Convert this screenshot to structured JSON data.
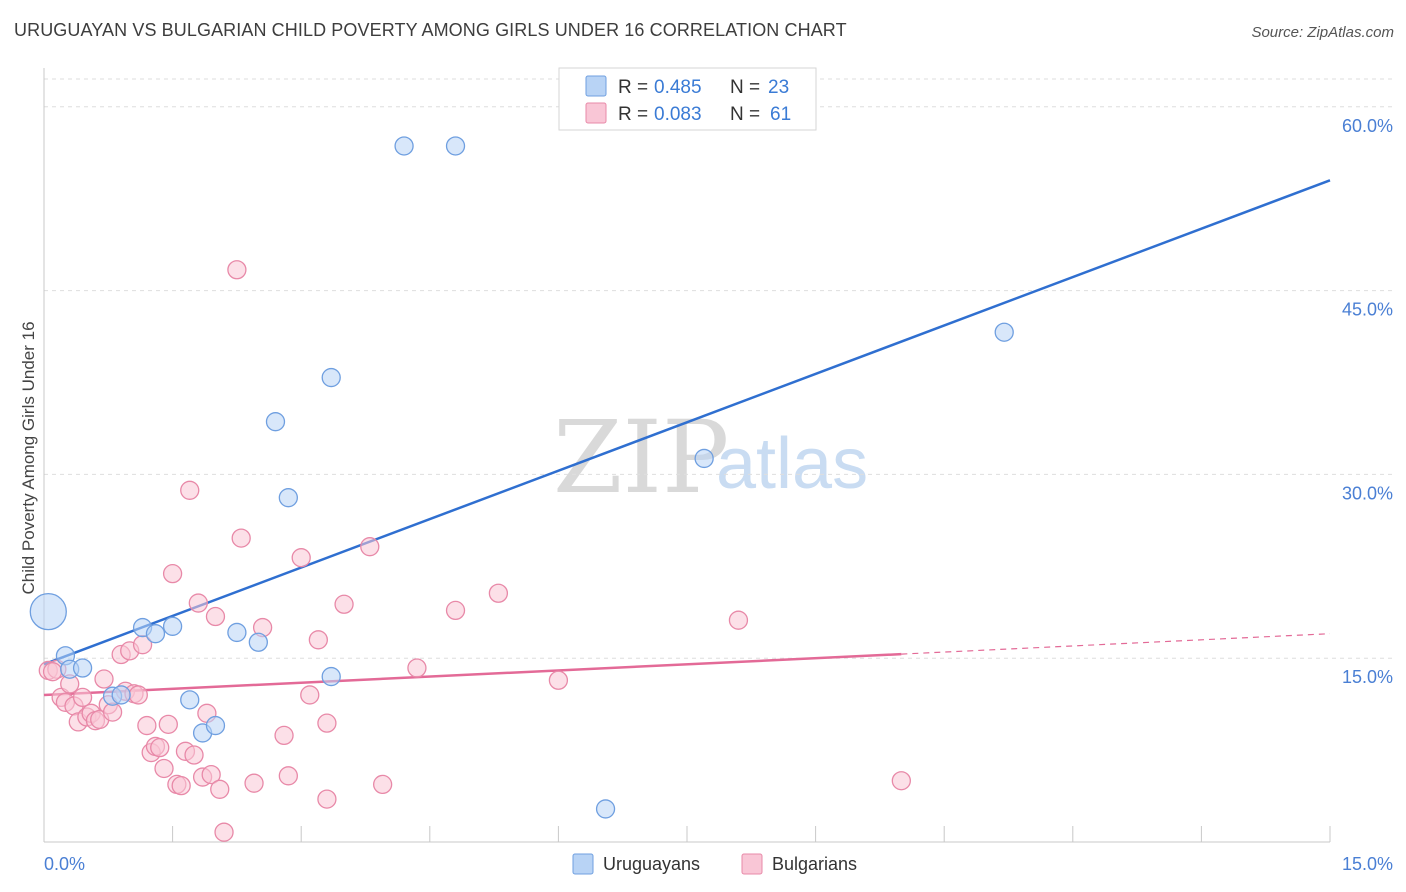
{
  "header": {
    "title": "URUGUAYAN VS BULGARIAN CHILD POVERTY AMONG GIRLS UNDER 16 CORRELATION CHART",
    "source": "Source: ZipAtlas.com"
  },
  "watermark": {
    "zip": "ZIP",
    "atlas": "atlas"
  },
  "colors": {
    "uruguayan_fill": "#b8d3f5",
    "uruguayan_stroke": "#6f9fe0",
    "uruguayan_line": "#2f6fd0",
    "bulgarian_fill": "#f9c6d6",
    "bulgarian_stroke": "#e889a8",
    "bulgarian_line": "#e36a97",
    "tick_text": "#4a7fd4",
    "grid": "#dedede"
  },
  "legend": {
    "rows": [
      {
        "r_label": "R = ",
        "r_value": "0.485",
        "n_label": "N = ",
        "n_value": "23"
      },
      {
        "r_label": "R = ",
        "r_value": "0.083",
        "n_label": "N = ",
        "n_value": "61"
      }
    ],
    "bottom": [
      "Uruguayans",
      "Bulgarians"
    ]
  },
  "chart_data": {
    "type": "scatter",
    "title": "URUGUAYAN VS BULGARIAN CHILD POVERTY AMONG GIRLS UNDER 16 CORRELATION CHART",
    "xlabel": "",
    "ylabel": "Child Poverty Among Girls Under 16",
    "xlim": [
      0,
      15
    ],
    "ylim": [
      0,
      63
    ],
    "x_tick_labels": [
      "0.0%",
      "15.0%"
    ],
    "y_ticks": [
      15,
      30,
      45,
      60
    ],
    "y_tick_labels": [
      "15.0%",
      "30.0%",
      "45.0%",
      "60.0%"
    ],
    "grid": true,
    "legend_position": "top-center",
    "series": [
      {
        "name": "Uruguayans",
        "R": 0.485,
        "N": 23,
        "trend": {
          "x": [
            0.0,
            15.0
          ],
          "y": [
            14.5,
            54.0
          ],
          "dashed_from": null
        },
        "points": [
          [
            0.05,
            18.8,
            18
          ],
          [
            0.25,
            15.2,
            9
          ],
          [
            0.3,
            14.1,
            9
          ],
          [
            0.45,
            14.2,
            9
          ],
          [
            0.8,
            11.9,
            9
          ],
          [
            1.15,
            17.5,
            9
          ],
          [
            1.3,
            17.0,
            9
          ],
          [
            1.5,
            17.6,
            9
          ],
          [
            1.7,
            11.6,
            9
          ],
          [
            1.85,
            8.9,
            9
          ],
          [
            2.0,
            9.5,
            9
          ],
          [
            2.25,
            17.1,
            9
          ],
          [
            2.5,
            16.3,
            9
          ],
          [
            2.7,
            34.3,
            9
          ],
          [
            2.85,
            28.1,
            9
          ],
          [
            3.35,
            37.9,
            9
          ],
          [
            3.35,
            13.5,
            9
          ],
          [
            4.2,
            56.8,
            9
          ],
          [
            4.8,
            56.8,
            9
          ],
          [
            7.7,
            31.3,
            9
          ],
          [
            6.55,
            2.7,
            9
          ],
          [
            11.2,
            41.6,
            9
          ],
          [
            0.9,
            12.0,
            9
          ]
        ]
      },
      {
        "name": "Bulgarians",
        "R": 0.083,
        "N": 61,
        "trend": {
          "x": [
            0.0,
            15.0
          ],
          "y": [
            12.0,
            17.0
          ],
          "dashed_from": 10.0
        },
        "points": [
          [
            0.05,
            14.0,
            9
          ],
          [
            0.15,
            14.1,
            9
          ],
          [
            0.2,
            11.8,
            9
          ],
          [
            0.25,
            11.4,
            9
          ],
          [
            0.3,
            12.9,
            9
          ],
          [
            0.35,
            11.1,
            9
          ],
          [
            0.4,
            9.8,
            9
          ],
          [
            0.45,
            11.8,
            9
          ],
          [
            0.5,
            10.2,
            9
          ],
          [
            0.55,
            10.5,
            9
          ],
          [
            0.6,
            9.9,
            9
          ],
          [
            0.65,
            10.0,
            9
          ],
          [
            0.7,
            13.3,
            9
          ],
          [
            0.75,
            11.2,
            9
          ],
          [
            0.8,
            10.6,
            9
          ],
          [
            0.9,
            15.3,
            9
          ],
          [
            0.95,
            12.3,
            9
          ],
          [
            1.0,
            15.6,
            9
          ],
          [
            1.05,
            12.1,
            9
          ],
          [
            1.1,
            12.0,
            9
          ],
          [
            1.15,
            16.1,
            9
          ],
          [
            1.2,
            9.5,
            9
          ],
          [
            1.25,
            7.3,
            9
          ],
          [
            1.3,
            7.8,
            9
          ],
          [
            1.35,
            7.7,
            9
          ],
          [
            1.4,
            6.0,
            9
          ],
          [
            1.45,
            9.6,
            9
          ],
          [
            1.5,
            21.9,
            9
          ],
          [
            1.55,
            4.7,
            9
          ],
          [
            1.6,
            4.6,
            9
          ],
          [
            1.65,
            7.4,
            9
          ],
          [
            1.7,
            28.7,
            9
          ],
          [
            1.75,
            7.1,
            9
          ],
          [
            1.8,
            19.5,
            9
          ],
          [
            1.85,
            5.3,
            9
          ],
          [
            1.9,
            10.5,
            9
          ],
          [
            1.95,
            5.5,
            9
          ],
          [
            2.0,
            18.4,
            9
          ],
          [
            2.05,
            4.3,
            9
          ],
          [
            2.1,
            0.8,
            9
          ],
          [
            2.25,
            46.7,
            9
          ],
          [
            2.3,
            24.8,
            9
          ],
          [
            2.45,
            4.8,
            9
          ],
          [
            2.55,
            17.5,
            9
          ],
          [
            2.8,
            8.7,
            9
          ],
          [
            2.85,
            5.4,
            9
          ],
          [
            3.0,
            23.2,
            9
          ],
          [
            3.1,
            12.0,
            9
          ],
          [
            3.2,
            16.5,
            9
          ],
          [
            3.3,
            9.7,
            9
          ],
          [
            3.3,
            3.5,
            9
          ],
          [
            3.5,
            19.4,
            9
          ],
          [
            3.8,
            24.1,
            9
          ],
          [
            3.95,
            4.7,
            9
          ],
          [
            4.35,
            14.2,
            9
          ],
          [
            4.8,
            18.9,
            9
          ],
          [
            5.3,
            20.3,
            9
          ],
          [
            6.0,
            13.2,
            9
          ],
          [
            8.1,
            18.1,
            9
          ],
          [
            10.0,
            5.0,
            9
          ],
          [
            0.1,
            13.9,
            9
          ]
        ]
      }
    ]
  }
}
